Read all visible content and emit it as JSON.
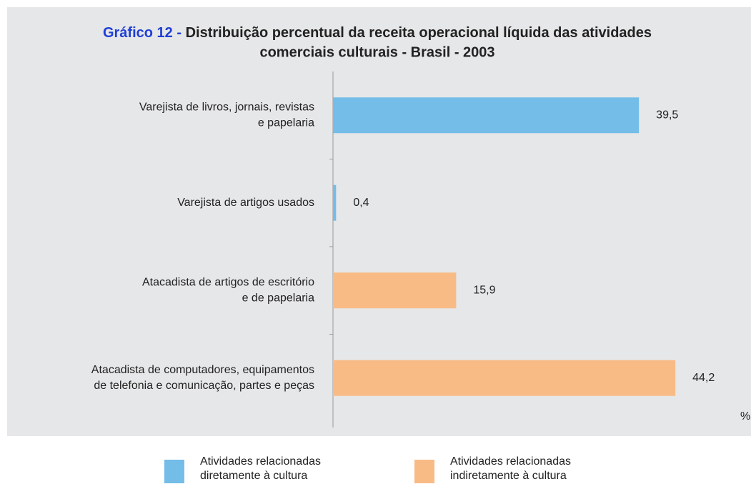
{
  "chart_data": {
    "type": "bar",
    "orientation": "horizontal",
    "title_label": "Gráfico 12 -",
    "title": [
      "Distribuição percentual da receita operacional líquida das atividades",
      "comerciais culturais - Brasil - 2003"
    ],
    "x_label": "%",
    "categories": [
      [
        "Varejista de livros, jornais, revistas",
        "e papelaria"
      ],
      [
        "Varejista de artigos usados"
      ],
      [
        "Atacadista de artigos de escritório",
        "e de papelaria"
      ],
      [
        "Atacadista de computadores, equipamentos",
        "de telefonia e comunicação, partes e peças"
      ]
    ],
    "series": [
      {
        "name": "Atividades relacionadas diretamente à cultura",
        "color": "#74bde8",
        "values": [
          39.5,
          0.4,
          null,
          null
        ],
        "value_labels": [
          "39,5",
          "0,4",
          null,
          null
        ]
      },
      {
        "name": "Atividades relacionadas indiretamente à cultura",
        "color": "#f9bb86",
        "values": [
          null,
          null,
          15.9,
          44.2
        ],
        "value_labels": [
          null,
          null,
          "15,9",
          "44,2"
        ]
      }
    ],
    "xlim": [
      0,
      50
    ]
  }
}
